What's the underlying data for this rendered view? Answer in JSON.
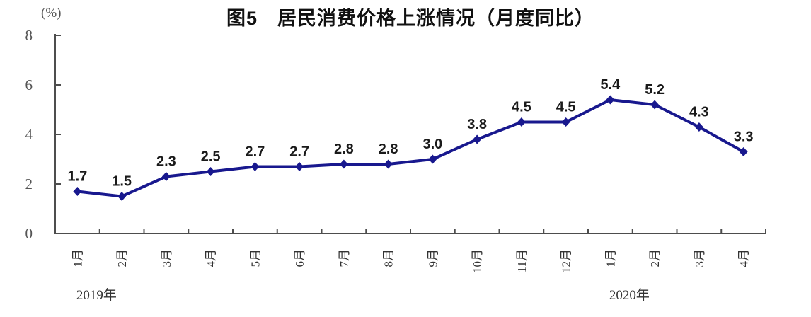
{
  "colors": {
    "line": "#18188e",
    "axis": "#4d4d4d",
    "data_label": "#1a1a1a",
    "tick_text": "#555555",
    "title": "#111111"
  },
  "chart_data": {
    "type": "line",
    "title": "图5　居民消费价格上涨情况（月度同比）",
    "ylabel": "(%)",
    "categories": [
      "1月",
      "2月",
      "3月",
      "4月",
      "5月",
      "6月",
      "7月",
      "8月",
      "9月",
      "10月",
      "11月",
      "12月",
      "1月",
      "2月",
      "3月",
      "4月"
    ],
    "year_labels": [
      {
        "text": "2019年",
        "category_index": 0
      },
      {
        "text": "2020年",
        "category_index": 12
      }
    ],
    "values": [
      1.7,
      1.5,
      2.3,
      2.5,
      2.7,
      2.7,
      2.8,
      2.8,
      3.0,
      3.8,
      4.5,
      4.5,
      5.4,
      5.2,
      4.3,
      3.3
    ],
    "ylim": [
      0,
      8
    ],
    "yticks": [
      0,
      2,
      4,
      6,
      8
    ],
    "grid": false,
    "legend": "none",
    "marker": "diamond",
    "data_labels_shown": true
  }
}
